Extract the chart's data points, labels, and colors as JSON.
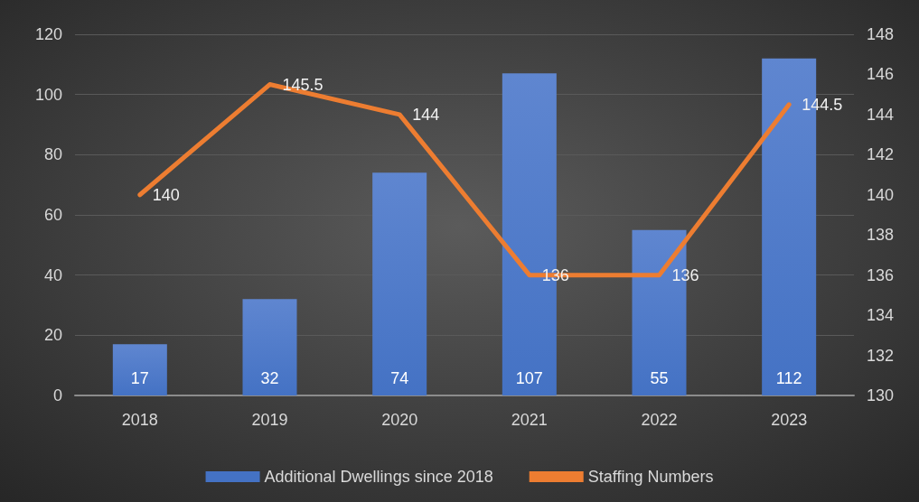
{
  "chart_data": {
    "type": "bar",
    "categories": [
      "2018",
      "2019",
      "2020",
      "2021",
      "2022",
      "2023"
    ],
    "series": [
      {
        "name": "Additional Dwellings since 2018",
        "color": "#4472c4",
        "values": [
          17,
          32,
          74,
          107,
          55,
          112
        ]
      },
      {
        "name": "Staffing Numbers",
        "type": "line",
        "axis": "y2",
        "color": "#ed7d31",
        "values": [
          140,
          145.5,
          144,
          136,
          136,
          144.5
        ]
      }
    ],
    "ylim": [
      0,
      120
    ],
    "yticks": [
      0,
      20,
      40,
      60,
      80,
      100,
      120
    ],
    "y2lim": [
      130,
      148
    ],
    "y2ticks": [
      130,
      132,
      134,
      136,
      138,
      140,
      142,
      144,
      146,
      148
    ],
    "grid": "y",
    "legend": "bottom",
    "data_labels": true,
    "marker": "none",
    "line_style": "solid"
  }
}
